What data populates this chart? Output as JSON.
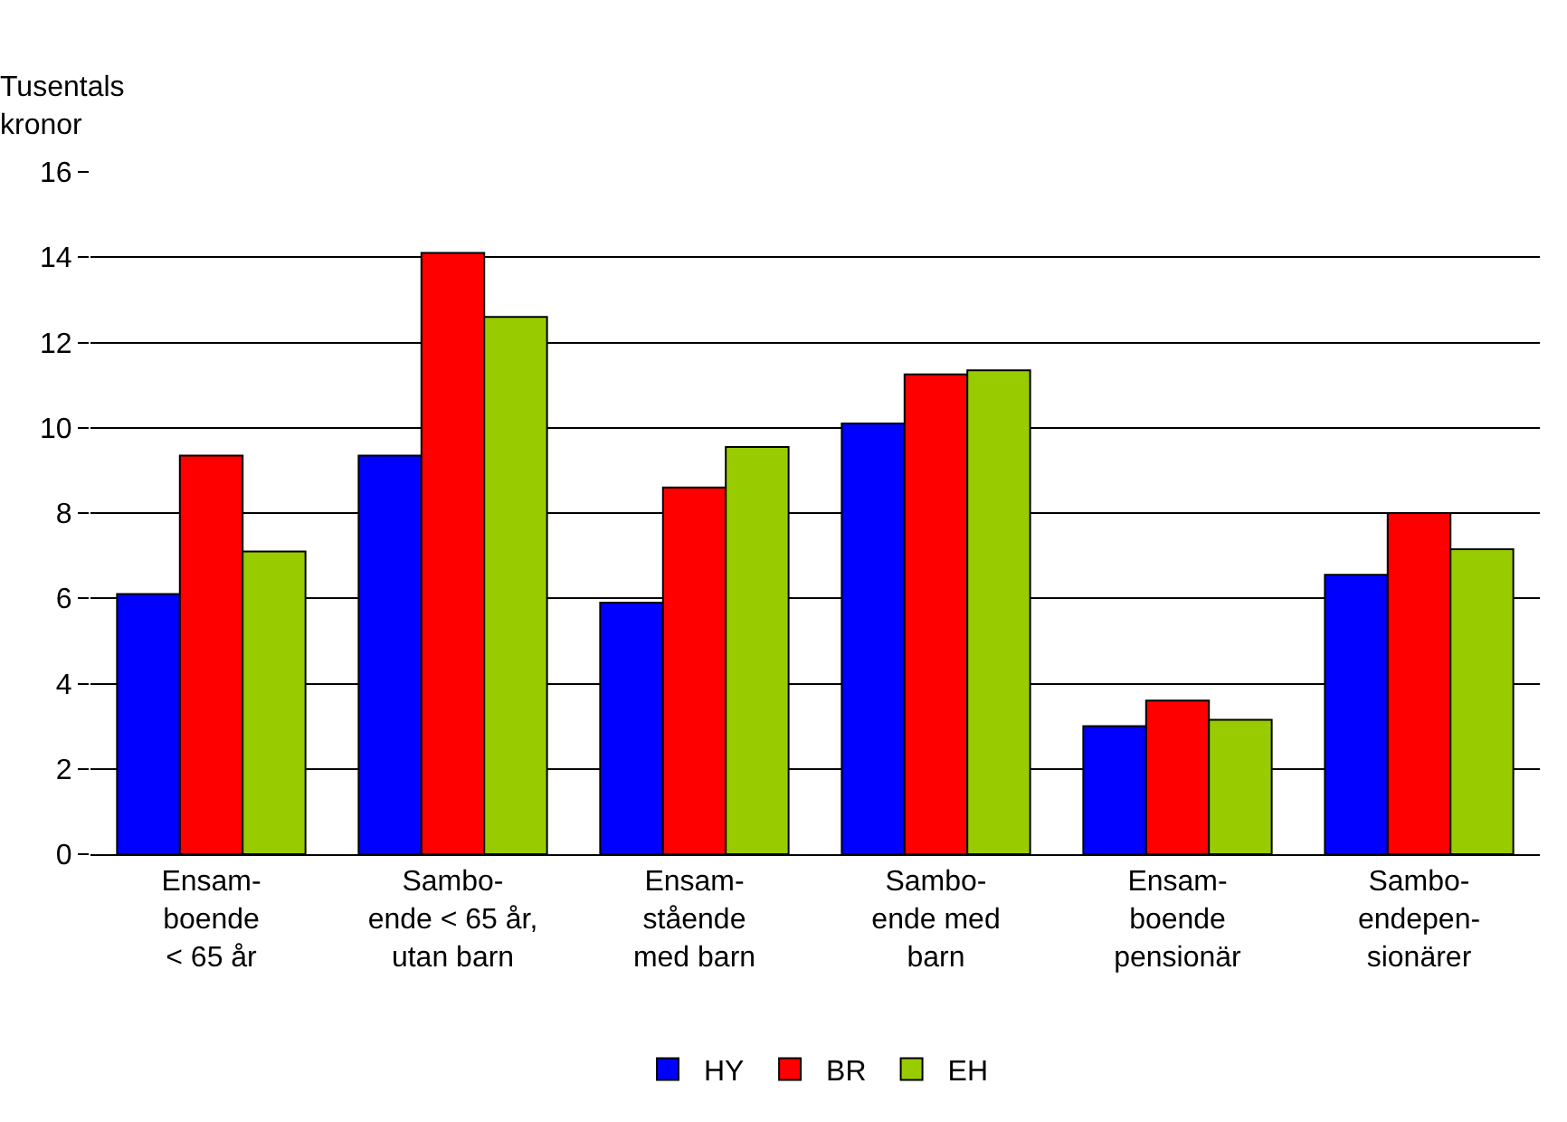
{
  "chart_data": {
    "type": "bar",
    "ylabel": "Tusentals\nkronor",
    "categories": [
      "Ensam-\nboende\n< 65 år",
      "Sambo-\nende < 65 år,\nutan barn",
      "Ensam-\nstående\nmed barn",
      "Sambo-\nende med\nbarn",
      "Ensam-\nboende\npensionär",
      "Sambo-\nendepen-\nsionärer"
    ],
    "series": [
      {
        "name": "HY",
        "color": "#0000ff",
        "values": [
          6.1,
          9.35,
          5.9,
          10.1,
          3.0,
          6.55
        ]
      },
      {
        "name": "BR",
        "color": "#ff0000",
        "values": [
          9.35,
          14.1,
          8.6,
          11.25,
          3.6,
          8.0
        ]
      },
      {
        "name": "EH",
        "color": "#99cc00",
        "values": [
          7.1,
          12.6,
          9.55,
          11.35,
          3.15,
          7.15
        ]
      }
    ],
    "ylim": [
      0,
      16
    ],
    "yticks": [
      0,
      2,
      4,
      6,
      8,
      10,
      12,
      14,
      16
    ],
    "grid": "y",
    "legend": "bottom"
  }
}
